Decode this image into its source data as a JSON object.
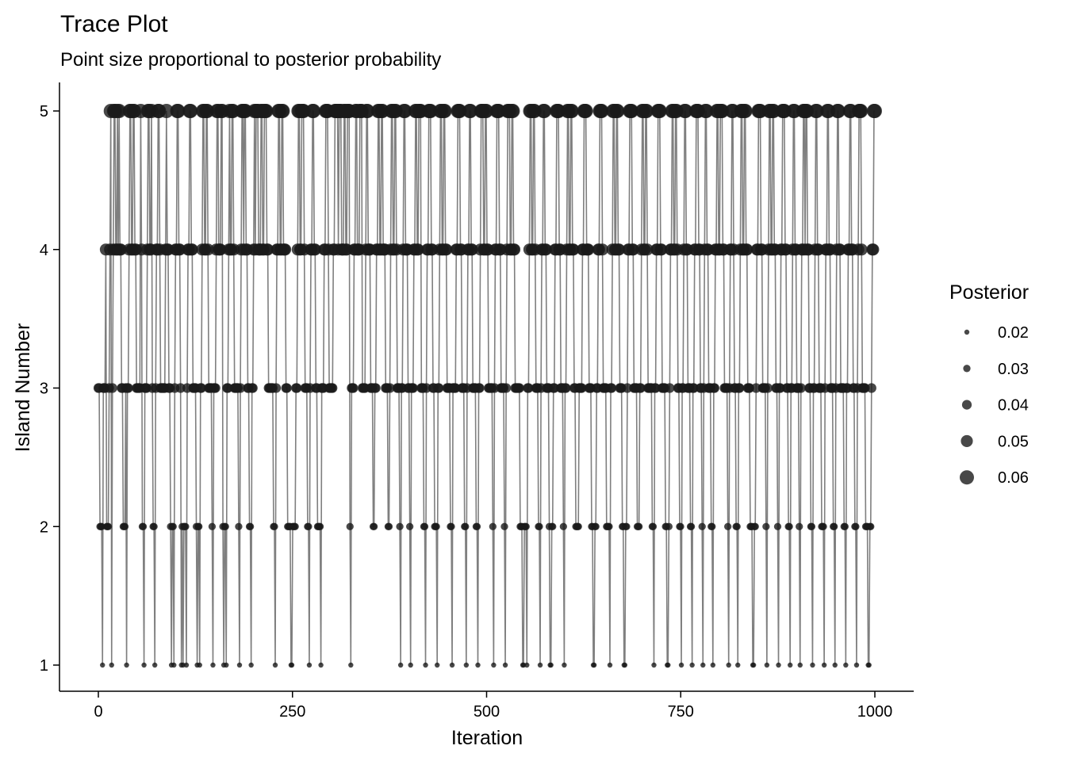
{
  "chart_data": {
    "type": "scatter",
    "title": "Trace Plot",
    "subtitle": "Point size proportional to posterior probability",
    "xlabel": "Iteration",
    "ylabel": "Island Number",
    "xlim": [
      0,
      1000
    ],
    "ylim": [
      1,
      5
    ],
    "x_ticks": [
      0,
      250,
      500,
      750,
      1000
    ],
    "y_ticks": [
      1,
      2,
      3,
      4,
      5
    ],
    "grid": false,
    "size_variable": "Posterior",
    "island_posterior": {
      "1": 0.02,
      "2": 0.03,
      "3": 0.04,
      "4": 0.05,
      "5": 0.06
    },
    "legend": {
      "title": "Posterior",
      "position": "right",
      "entries": [
        {
          "label": "0.02",
          "value": 0.02
        },
        {
          "label": "0.03",
          "value": 0.03
        },
        {
          "label": "0.04",
          "value": 0.04
        },
        {
          "label": "0.05",
          "value": 0.05
        },
        {
          "label": "0.06",
          "value": 0.06
        }
      ]
    },
    "line_color": "#7f7f7f",
    "point_color": "#1a1a1a",
    "iterations": 1000,
    "trace": [
      3,
      3,
      2,
      2,
      2,
      1,
      3,
      3,
      3,
      4,
      2,
      2,
      2,
      3,
      4,
      5,
      1,
      3,
      4,
      5,
      5,
      4,
      4,
      5,
      4,
      5,
      4,
      4,
      3,
      3,
      2,
      2,
      2,
      3,
      1,
      3,
      3,
      4,
      5,
      5,
      4,
      4,
      5,
      5,
      4,
      4,
      3,
      3,
      3,
      3,
      3,
      5,
      4,
      2,
      2,
      1,
      3,
      3,
      3,
      4,
      5,
      5,
      4,
      4,
      5,
      3,
      2,
      2,
      1,
      3,
      4,
      4,
      5,
      5,
      4,
      3,
      3,
      3,
      3,
      3,
      3,
      4,
      5,
      4,
      4,
      3,
      3,
      2,
      1,
      2,
      2,
      1,
      3,
      4,
      4,
      5,
      5,
      4,
      4,
      3,
      1,
      2,
      1,
      2,
      2,
      2,
      1,
      3,
      4,
      4,
      5,
      5,
      4,
      4,
      3,
      3,
      3,
      3,
      2,
      1,
      2,
      2,
      1,
      3,
      3,
      4,
      5,
      5,
      4,
      4,
      5,
      5,
      4,
      3,
      3,
      3,
      3,
      2,
      1,
      3,
      3,
      3,
      4,
      5,
      5,
      4,
      4,
      4,
      5,
      5,
      2,
      1,
      2,
      2,
      1,
      3,
      3,
      4,
      5,
      4,
      4,
      5,
      5,
      4,
      3,
      3,
      3,
      3,
      3,
      2,
      1,
      3,
      4,
      5,
      5,
      4,
      5,
      5,
      4,
      4,
      3,
      3,
      2,
      2,
      1,
      3,
      3,
      4,
      5,
      4,
      5,
      5,
      5,
      4,
      4,
      4,
      5,
      5,
      4,
      4,
      5,
      5,
      5,
      4,
      4,
      3,
      3,
      3,
      3,
      3,
      3,
      2,
      2,
      1,
      3,
      4,
      4,
      5,
      5,
      4,
      4,
      5,
      5,
      4,
      4,
      4,
      3,
      3,
      2,
      2,
      2,
      2,
      1,
      1,
      2,
      2,
      2,
      2,
      3,
      3,
      4,
      5,
      5,
      4,
      4,
      5,
      5,
      5,
      4,
      3,
      3,
      3,
      2,
      2,
      1,
      3,
      4,
      4,
      5,
      5,
      4,
      4,
      3,
      3,
      2,
      2,
      2,
      2,
      1,
      3,
      3,
      3,
      4,
      4,
      5,
      5,
      5,
      4,
      3,
      3,
      3,
      3,
      3,
      4,
      4,
      5,
      5,
      5,
      5,
      4,
      5,
      5,
      5,
      4,
      4,
      4,
      5,
      5,
      4,
      4,
      5,
      5,
      5,
      2,
      1,
      3,
      3,
      3,
      4,
      4,
      5,
      5,
      4,
      4,
      4,
      5,
      5,
      5,
      3,
      3,
      3,
      3,
      4,
      5,
      5,
      4,
      4,
      4,
      3,
      3,
      3,
      2,
      2,
      3,
      3,
      4,
      4,
      5,
      5,
      4,
      4,
      5,
      5,
      4,
      4,
      4,
      3,
      3,
      3,
      2,
      2,
      3,
      4,
      5,
      5,
      4,
      4,
      5,
      5,
      4,
      3,
      3,
      3,
      2,
      1,
      3,
      3,
      4,
      5,
      5,
      4,
      4,
      4,
      3,
      3,
      2,
      1,
      3,
      3,
      3,
      4,
      4,
      5,
      5,
      4,
      4,
      5,
      5,
      5,
      3,
      3,
      3,
      2,
      2,
      1,
      3,
      4,
      4,
      5,
      5,
      5,
      4,
      4,
      3,
      3,
      2,
      2,
      2,
      1,
      3,
      3,
      4,
      5,
      5,
      4,
      4,
      5,
      5,
      4,
      4,
      3,
      3,
      3,
      3,
      2,
      2,
      1,
      3,
      3,
      3,
      3,
      4,
      4,
      5,
      5,
      5,
      4,
      4,
      3,
      3,
      3,
      2,
      2,
      1,
      3,
      4,
      4,
      5,
      5,
      4,
      4,
      3,
      3,
      3,
      3,
      2,
      2,
      1,
      3,
      3,
      4,
      5,
      5,
      5,
      4,
      4,
      5,
      5,
      4,
      4,
      3,
      3,
      3,
      3,
      3,
      2,
      1,
      3,
      4,
      4,
      5,
      5,
      5,
      4,
      4,
      3,
      3,
      3,
      3,
      2,
      1,
      3,
      4,
      5,
      5,
      5,
      4,
      4,
      5,
      5,
      4,
      4,
      3,
      3,
      3,
      3,
      3,
      3,
      2,
      2,
      2,
      1,
      1,
      2,
      2,
      2,
      1,
      3,
      3,
      4,
      5,
      5,
      4,
      4,
      5,
      5,
      4,
      3,
      3,
      3,
      2,
      2,
      1,
      3,
      4,
      4,
      5,
      5,
      4,
      4,
      3,
      3,
      3,
      2,
      1,
      1,
      2,
      2,
      3,
      3,
      4,
      4,
      5,
      5,
      5,
      4,
      4,
      3,
      3,
      3,
      2,
      1,
      3,
      3,
      4,
      5,
      5,
      4,
      4,
      5,
      5,
      4,
      4,
      3,
      3,
      2,
      2,
      2,
      2,
      3,
      3,
      3,
      3,
      4,
      4,
      5,
      5,
      5,
      4,
      4,
      4,
      3,
      3,
      3,
      2,
      2,
      1,
      1,
      2,
      2,
      3,
      3,
      4,
      4,
      5,
      5,
      5,
      4,
      3,
      3,
      3,
      3,
      2,
      2,
      2,
      2,
      1,
      3,
      3,
      4,
      5,
      5,
      4,
      4,
      5,
      5,
      4,
      4,
      3,
      3,
      3,
      2,
      2,
      1,
      1,
      2,
      2,
      3,
      4,
      4,
      5,
      5,
      5,
      4,
      4,
      3,
      3,
      3,
      3,
      2,
      2,
      2,
      3,
      3,
      4,
      5,
      5,
      4,
      4,
      5,
      5,
      4,
      3,
      3,
      3,
      3,
      3,
      2,
      2,
      1,
      3,
      3,
      4,
      4,
      5,
      5,
      5,
      4,
      4,
      3,
      3,
      3,
      3,
      2,
      2,
      1,
      1,
      2,
      3,
      4,
      4,
      5,
      5,
      4,
      4,
      5,
      5,
      4,
      3,
      3,
      2,
      2,
      1,
      3,
      3,
      4,
      5,
      5,
      4,
      4,
      3,
      3,
      3,
      2,
      2,
      1,
      3,
      3,
      4,
      4,
      5,
      5,
      5,
      4,
      4,
      3,
      3,
      2,
      1,
      3,
      4,
      5,
      5,
      4,
      4,
      3,
      3,
      3,
      2,
      2,
      1,
      3,
      3,
      4,
      4,
      5,
      5,
      4,
      4,
      5,
      5,
      5,
      4,
      4,
      3,
      3,
      3,
      3,
      2,
      1,
      3,
      4,
      4,
      5,
      5,
      4,
      3,
      3,
      2,
      2,
      1,
      3,
      3,
      4,
      5,
      5,
      4,
      4,
      5,
      5,
      4,
      4,
      3,
      3,
      3,
      2,
      2,
      2,
      1,
      1,
      2,
      2,
      3,
      4,
      4,
      5,
      5,
      5,
      4,
      4,
      3,
      3,
      3,
      3,
      2,
      1,
      3,
      4,
      5,
      5,
      4,
      4,
      5,
      5,
      4,
      4,
      3,
      3,
      2,
      1,
      3,
      3,
      4,
      4,
      5,
      5,
      5,
      4,
      4,
      3,
      3,
      2,
      2,
      1,
      3,
      3,
      4,
      5,
      5,
      4,
      4,
      3,
      3,
      3,
      2,
      1,
      3,
      4,
      4,
      5,
      5,
      4,
      5,
      5,
      4,
      4,
      3,
      3,
      2,
      2,
      1,
      3,
      3,
      4,
      5,
      5,
      4,
      4,
      3,
      3,
      3,
      2,
      2,
      2,
      1,
      3,
      4,
      4,
      5,
      5,
      4,
      4,
      3,
      3,
      3,
      2,
      2,
      1,
      3,
      4,
      5,
      5,
      4,
      4,
      3,
      3,
      3,
      3,
      2,
      2,
      1,
      3,
      3,
      4,
      4,
      5,
      5,
      4,
      4,
      3,
      3,
      2,
      2,
      1,
      3,
      4,
      5,
      5,
      5,
      4,
      3,
      3,
      3,
      3,
      2,
      2,
      2,
      1,
      1,
      2,
      2,
      3,
      4,
      4,
      5,
      5
    ]
  }
}
